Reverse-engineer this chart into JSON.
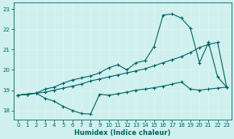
{
  "xlabel": "Humidex (Indice chaleur)",
  "bg_color": "#cff0ee",
  "line_color": "#006666",
  "grid_color": "#ddf5f2",
  "xlim": [
    -0.5,
    23.5
  ],
  "ylim": [
    17.55,
    23.3
  ],
  "yticks": [
    18,
    19,
    20,
    21,
    22,
    23
  ],
  "xticks": [
    0,
    1,
    2,
    3,
    4,
    5,
    6,
    7,
    8,
    9,
    10,
    11,
    12,
    13,
    14,
    15,
    16,
    17,
    18,
    19,
    20,
    21,
    22,
    23
  ],
  "line1_x": [
    0,
    1,
    2,
    3,
    4,
    5,
    6,
    7,
    8,
    9,
    10,
    11,
    12,
    13,
    14,
    15,
    16,
    17,
    18,
    19,
    20,
    21,
    22,
    23
  ],
  "line1_y": [
    18.75,
    18.8,
    18.85,
    18.9,
    19.0,
    19.1,
    19.2,
    19.3,
    19.45,
    19.55,
    19.65,
    19.75,
    19.85,
    19.95,
    20.05,
    20.2,
    20.35,
    20.5,
    20.65,
    20.85,
    21.1,
    21.25,
    21.35,
    19.15
  ],
  "line2_x": [
    0,
    1,
    2,
    3,
    4,
    5,
    6,
    7,
    8,
    9,
    10,
    11,
    12,
    13,
    14,
    15,
    16,
    17,
    18,
    19,
    20,
    21,
    22,
    23
  ],
  "line2_y": [
    18.75,
    18.8,
    18.85,
    19.05,
    19.15,
    19.35,
    19.5,
    19.6,
    19.7,
    19.85,
    20.1,
    20.25,
    20.0,
    20.35,
    20.45,
    21.15,
    22.7,
    22.75,
    22.55,
    22.05,
    20.35,
    21.35,
    19.65,
    19.15
  ],
  "line3_x": [
    0,
    1,
    2,
    3,
    4,
    5,
    6,
    7,
    8,
    9,
    10,
    11,
    12,
    13,
    14,
    15,
    16,
    17,
    18,
    19,
    20,
    21,
    22,
    23
  ],
  "line3_y": [
    18.75,
    18.8,
    18.85,
    18.6,
    18.45,
    18.2,
    18.0,
    17.85,
    17.82,
    18.8,
    18.75,
    18.82,
    18.9,
    19.0,
    19.05,
    19.12,
    19.2,
    19.3,
    19.4,
    19.05,
    19.0,
    19.05,
    19.1,
    19.15
  ],
  "marker": "+",
  "markersize": 3.5,
  "linewidth": 0.8
}
